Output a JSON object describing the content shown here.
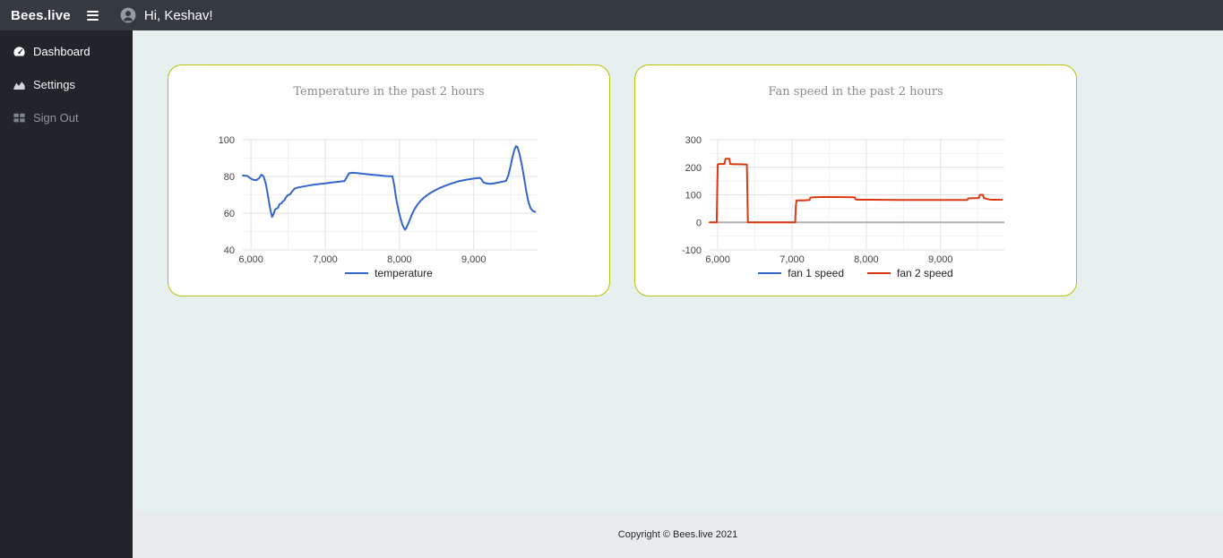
{
  "topbar": {
    "brand": "Bees.live",
    "greeting": "Hi, Keshav!"
  },
  "sidebar": {
    "items": [
      {
        "label": "Dashboard",
        "icon": "tachometer-icon",
        "active": true
      },
      {
        "label": "Settings",
        "icon": "chart-area-icon",
        "active": false
      },
      {
        "label": "Sign Out",
        "icon": "table-icon",
        "active": false
      }
    ]
  },
  "footer": {
    "text": "Copyright © Bees.live 2021"
  },
  "colors": {
    "topbar_bg": "#343a40",
    "sidebar_bg": "#212529",
    "main_bg": "#e6f1ef",
    "footer_bg": "#e9ecef",
    "card_border": "#b4c306",
    "series_blue": "#3366cc",
    "series_red": "#dc3912"
  },
  "chart_data": [
    {
      "id": "temperature-chart",
      "type": "line",
      "title": "Temperature in the past 2 hours",
      "xlim": [
        5890,
        9860
      ],
      "ylim": [
        40,
        100
      ],
      "grid": true,
      "legend_position": "bottom",
      "xticks": [
        {
          "v": 6000,
          "label": "6,000"
        },
        {
          "v": 7000,
          "label": "7,000"
        },
        {
          "v": 8000,
          "label": "8,000"
        },
        {
          "v": 9000,
          "label": "9,000"
        }
      ],
      "xminor": [
        6500,
        7500,
        8500,
        9500
      ],
      "yticks": [
        {
          "v": 40,
          "label": "40"
        },
        {
          "v": 60,
          "label": "60"
        },
        {
          "v": 80,
          "label": "80"
        },
        {
          "v": 100,
          "label": "100"
        }
      ],
      "yminor": [
        50,
        70,
        90
      ],
      "baseline": null,
      "series": [
        {
          "name": "temperature",
          "color": "#3366cc",
          "points": [
            [
              5890,
              80.5
            ],
            [
              5950,
              80.3
            ],
            [
              5990,
              79
            ],
            [
              6030,
              78.2
            ],
            [
              6070,
              78
            ],
            [
              6110,
              79
            ],
            [
              6140,
              81
            ],
            [
              6170,
              80
            ],
            [
              6200,
              76
            ],
            [
              6230,
              69
            ],
            [
              6260,
              62
            ],
            [
              6285,
              58
            ],
            [
              6305,
              59.5
            ],
            [
              6325,
              62
            ],
            [
              6345,
              62.5
            ],
            [
              6365,
              63
            ],
            [
              6385,
              65
            ],
            [
              6410,
              65.3
            ],
            [
              6430,
              66.5
            ],
            [
              6450,
              67
            ],
            [
              6470,
              68.5
            ],
            [
              6495,
              69.8
            ],
            [
              6525,
              70.2
            ],
            [
              6555,
              71.8
            ],
            [
              6585,
              73.3
            ],
            [
              6635,
              74
            ],
            [
              6700,
              74.5
            ],
            [
              6800,
              75.2
            ],
            [
              6900,
              75.8
            ],
            [
              7000,
              76.2
            ],
            [
              7100,
              76.8
            ],
            [
              7200,
              77.2
            ],
            [
              7260,
              77.5
            ],
            [
              7290,
              79.5
            ],
            [
              7320,
              81.7
            ],
            [
              7360,
              82
            ],
            [
              7430,
              81.8
            ],
            [
              7520,
              81.4
            ],
            [
              7620,
              81
            ],
            [
              7720,
              80.6
            ],
            [
              7820,
              80.2
            ],
            [
              7880,
              80.1
            ],
            [
              7905,
              80
            ],
            [
              7930,
              75
            ],
            [
              7955,
              68
            ],
            [
              7985,
              62
            ],
            [
              8015,
              57
            ],
            [
              8045,
              53
            ],
            [
              8075,
              51
            ],
            [
              8100,
              52.5
            ],
            [
              8130,
              55.5
            ],
            [
              8165,
              59
            ],
            [
              8200,
              62
            ],
            [
              8240,
              64.5
            ],
            [
              8285,
              66.8
            ],
            [
              8330,
              68.5
            ],
            [
              8390,
              70.3
            ],
            [
              8460,
              72
            ],
            [
              8540,
              73.7
            ],
            [
              8620,
              75
            ],
            [
              8710,
              76.3
            ],
            [
              8810,
              77.5
            ],
            [
              8910,
              78.3
            ],
            [
              9010,
              78.9
            ],
            [
              9080,
              79.2
            ],
            [
              9105,
              78.5
            ],
            [
              9130,
              76.8
            ],
            [
              9170,
              76.2
            ],
            [
              9220,
              76
            ],
            [
              9280,
              76.3
            ],
            [
              9340,
              76.8
            ],
            [
              9400,
              77.2
            ],
            [
              9435,
              77.6
            ],
            [
              9465,
              80.5
            ],
            [
              9495,
              85.5
            ],
            [
              9525,
              91
            ],
            [
              9550,
              94.8
            ],
            [
              9570,
              96.5
            ],
            [
              9590,
              96
            ],
            [
              9615,
              92.5
            ],
            [
              9645,
              87
            ],
            [
              9675,
              80
            ],
            [
              9705,
              72.5
            ],
            [
              9735,
              66.5
            ],
            [
              9765,
              62.8
            ],
            [
              9795,
              61.2
            ],
            [
              9828,
              60.8
            ]
          ]
        }
      ]
    },
    {
      "id": "fan-speed-chart",
      "type": "line",
      "title": "Fan speed in the past 2 hours",
      "xlim": [
        5890,
        9860
      ],
      "ylim": [
        -100,
        300
      ],
      "grid": true,
      "legend_position": "bottom",
      "xticks": [
        {
          "v": 6000,
          "label": "6,000"
        },
        {
          "v": 7000,
          "label": "7,000"
        },
        {
          "v": 8000,
          "label": "8,000"
        },
        {
          "v": 9000,
          "label": "9,000"
        }
      ],
      "xminor": [
        6500,
        7500,
        8500,
        9500
      ],
      "yticks": [
        {
          "v": -100,
          "label": "-100"
        },
        {
          "v": 0,
          "label": "0"
        },
        {
          "v": 100,
          "label": "100"
        },
        {
          "v": 200,
          "label": "200"
        },
        {
          "v": 300,
          "label": "300"
        }
      ],
      "yminor": [
        -50,
        50,
        150,
        250
      ],
      "baseline": 0,
      "series": [
        {
          "name": "fan 1 speed",
          "color": "#3366cc",
          "points": []
        },
        {
          "name": "fan 2 speed",
          "color": "#dc3912",
          "points": [
            [
              5890,
              0
            ],
            [
              5985,
              0
            ],
            [
              5995,
              150
            ],
            [
              6000,
              210
            ],
            [
              6015,
              212
            ],
            [
              6090,
              212
            ],
            [
              6105,
              231
            ],
            [
              6155,
              231
            ],
            [
              6168,
              212
            ],
            [
              6230,
              211
            ],
            [
              6320,
              211
            ],
            [
              6392,
              210
            ],
            [
              6400,
              80
            ],
            [
              6405,
              0
            ],
            [
              6430,
              0
            ],
            [
              6800,
              0
            ],
            [
              7042,
              0
            ],
            [
              7052,
              60
            ],
            [
              7060,
              80
            ],
            [
              7150,
              80
            ],
            [
              7235,
              81
            ],
            [
              7247,
              90
            ],
            [
              7290,
              91
            ],
            [
              7400,
              92
            ],
            [
              7560,
              92
            ],
            [
              7700,
              91.5
            ],
            [
              7845,
              91
            ],
            [
              7857,
              83
            ],
            [
              7900,
              82
            ],
            [
              8100,
              82
            ],
            [
              8400,
              81.5
            ],
            [
              8800,
              81
            ],
            [
              9200,
              81
            ],
            [
              9360,
              81
            ],
            [
              9372,
              87
            ],
            [
              9430,
              87.5
            ],
            [
              9480,
              88
            ],
            [
              9518,
              89
            ],
            [
              9528,
              100
            ],
            [
              9570,
              100
            ],
            [
              9582,
              89
            ],
            [
              9615,
              86
            ],
            [
              9655,
              83
            ],
            [
              9700,
              82
            ],
            [
              9828,
              82
            ]
          ]
        }
      ]
    }
  ]
}
